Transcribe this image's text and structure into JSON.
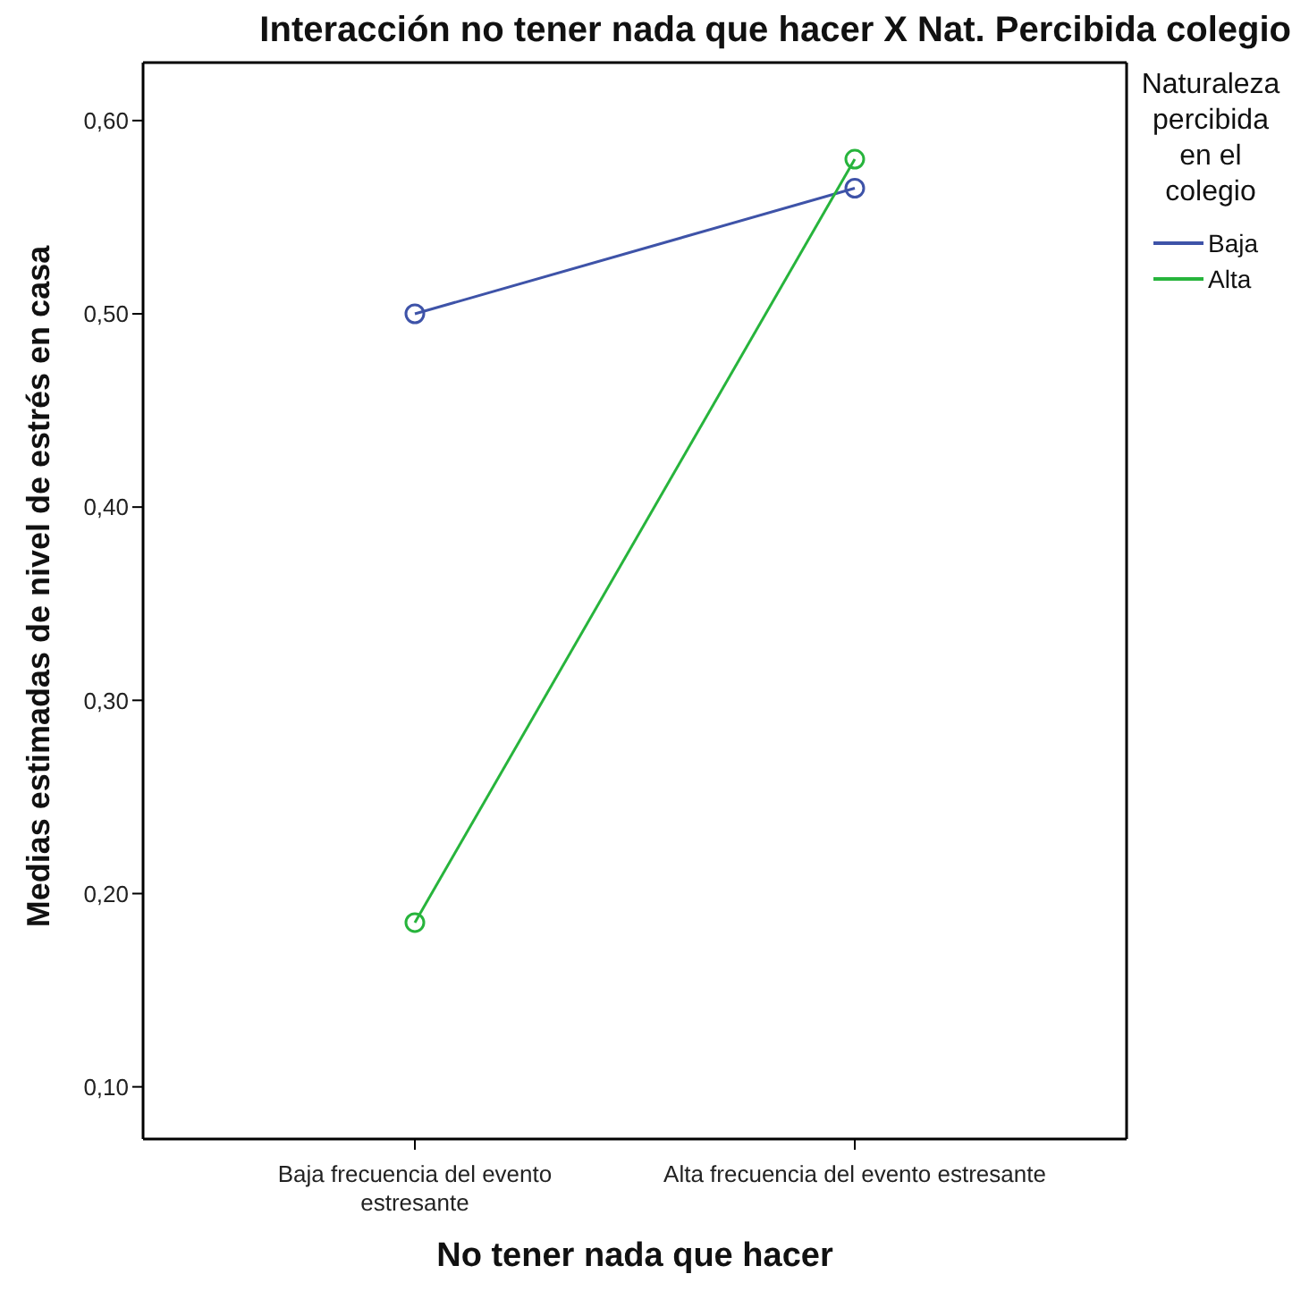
{
  "chart_data": {
    "type": "line",
    "title": "Interacción no tener nada que hacer X Nat. Percibida colegio",
    "xlabel": "No tener nada que hacer",
    "ylabel": "Medias estimadas de nivel de estrés en casa",
    "legend_title": "Naturaleza percibida en el colegio",
    "categories": [
      "Baja frecuencia del evento estresante",
      "Alta frecuencia del evento estresante"
    ],
    "series": [
      {
        "name": "Baja",
        "color": "#3e53a8",
        "values": [
          0.5,
          0.565
        ]
      },
      {
        "name": "Alta",
        "color": "#27b43c",
        "values": [
          0.185,
          0.58
        ]
      }
    ],
    "ylim": [
      0.073,
      0.63
    ],
    "yticks": [
      {
        "value": 0.1,
        "label": "0,10"
      },
      {
        "value": 0.2,
        "label": "0,20"
      },
      {
        "value": 0.3,
        "label": "0,30"
      },
      {
        "value": 0.4,
        "label": "0,40"
      },
      {
        "value": 0.5,
        "label": "0,50"
      },
      {
        "value": 0.6,
        "label": "0,60"
      }
    ],
    "grid": false,
    "legend": "top right",
    "marker": "circle",
    "line_style": "solid"
  }
}
